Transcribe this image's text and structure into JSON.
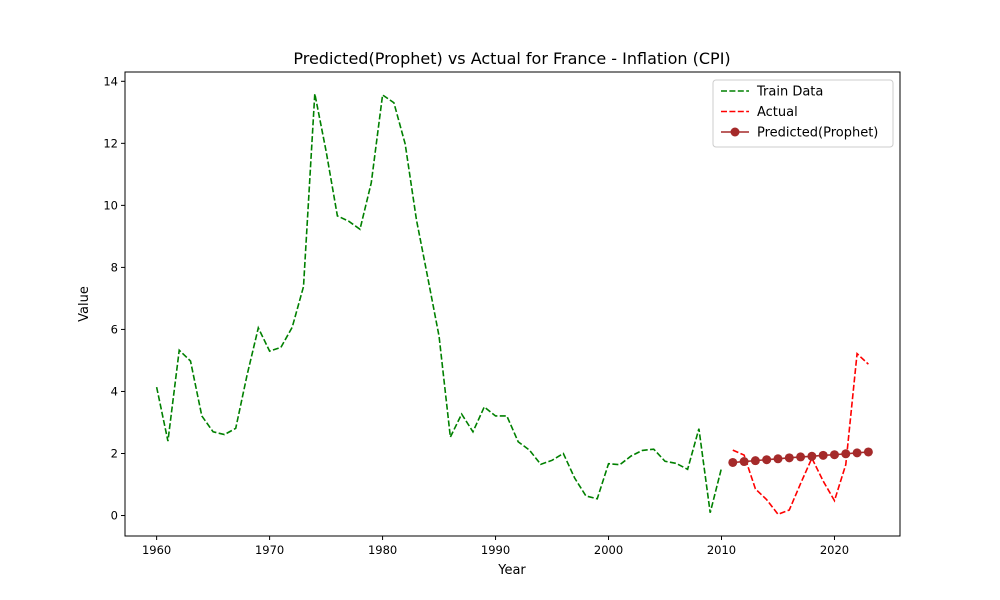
{
  "chart_data": {
    "type": "line",
    "title": "Predicted(Prophet) vs Actual for France - Inflation (CPI)",
    "xlabel": "Year",
    "ylabel": "Value",
    "xlim": [
      1957.2,
      2025.8
    ],
    "ylim": [
      -0.66,
      14.3
    ],
    "xticks": [
      1960,
      1970,
      1980,
      1990,
      2000,
      2010,
      2020
    ],
    "yticks": [
      0,
      2,
      4,
      6,
      8,
      10,
      12,
      14
    ],
    "grid": false,
    "legend_position": "upper right",
    "series": [
      {
        "name": "Train Data",
        "color": "#008000",
        "style": "dashed",
        "marker": "none",
        "x": [
          1960,
          1961,
          1962,
          1963,
          1964,
          1965,
          1966,
          1967,
          1968,
          1969,
          1970,
          1971,
          1972,
          1973,
          1974,
          1975,
          1976,
          1977,
          1978,
          1979,
          1980,
          1981,
          1982,
          1983,
          1984,
          1985,
          1986,
          1987,
          1988,
          1989,
          1990,
          1991,
          1992,
          1993,
          1994,
          1995,
          1996,
          1997,
          1998,
          1999,
          2000,
          2001,
          2002,
          2003,
          2004,
          2005,
          2006,
          2007,
          2008,
          2009,
          2010
        ],
        "y": [
          4.14,
          2.4,
          5.33,
          4.98,
          3.21,
          2.7,
          2.61,
          2.81,
          4.52,
          6.05,
          5.3,
          5.42,
          6.07,
          7.38,
          13.6,
          11.75,
          9.66,
          9.49,
          9.23,
          10.73,
          13.56,
          13.31,
          11.98,
          9.53,
          7.67,
          5.78,
          2.53,
          3.27,
          2.7,
          3.5,
          3.21,
          3.21,
          2.38,
          2.11,
          1.65,
          1.78,
          2.0,
          1.21,
          0.63,
          0.54,
          1.67,
          1.64,
          1.92,
          2.1,
          2.14,
          1.75,
          1.68,
          1.49,
          2.8,
          0.09,
          1.53
        ]
      },
      {
        "name": "Actual",
        "color": "#ff0000",
        "style": "dashed",
        "marker": "none",
        "x": [
          2011,
          2012,
          2013,
          2014,
          2015,
          2016,
          2017,
          2018,
          2019,
          2020,
          2021,
          2022,
          2023
        ],
        "y": [
          2.11,
          1.95,
          0.86,
          0.51,
          0.04,
          0.18,
          1.03,
          1.85,
          1.11,
          0.48,
          1.64,
          5.22,
          4.88
        ]
      },
      {
        "name": "Predicted(Prophet)",
        "color": "#a52a2a",
        "style": "solid",
        "marker": "circle",
        "x": [
          2011,
          2012,
          2013,
          2014,
          2015,
          2016,
          2017,
          2018,
          2019,
          2020,
          2021,
          2022,
          2023
        ],
        "y": [
          1.71,
          1.74,
          1.77,
          1.8,
          1.83,
          1.86,
          1.89,
          1.91,
          1.94,
          1.96,
          1.99,
          2.02,
          2.05
        ]
      }
    ]
  }
}
